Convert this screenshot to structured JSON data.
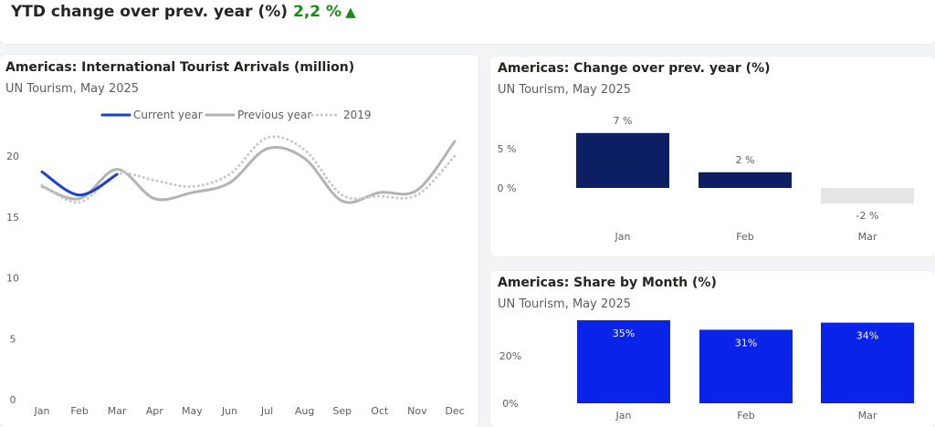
{
  "kpi": {
    "label": "YTD change over prev. year (%)",
    "value": "2,2 %",
    "arrow": "▲",
    "trend_color": "#1a8a1a"
  },
  "chart_data": [
    {
      "type": "line",
      "title": "Americas: International Tourist Arrivals (million)",
      "subtitle": "UN Tourism, May 2025",
      "x": [
        "Jan",
        "Feb",
        "Mar",
        "Apr",
        "May",
        "Jun",
        "Jul",
        "Aug",
        "Sep",
        "Oct",
        "Nov",
        "Dec"
      ],
      "ylim": [
        0,
        22
      ],
      "yticks": [
        0,
        5,
        10,
        15,
        20
      ],
      "legend_position": "top",
      "series": [
        {
          "name": "Current year",
          "color": "#1c3fd6",
          "style": "solid",
          "values": [
            18.7,
            16.8,
            18.5,
            null,
            null,
            null,
            null,
            null,
            null,
            null,
            null,
            null
          ]
        },
        {
          "name": "Previous year",
          "color": "#b3b3b3",
          "style": "solid",
          "values": [
            17.5,
            16.5,
            18.9,
            16.5,
            17.0,
            17.8,
            20.6,
            19.8,
            16.3,
            17.0,
            17.2,
            21.2
          ]
        },
        {
          "name": "2019",
          "color": "#c8c8c8",
          "style": "dotted",
          "values": [
            17.6,
            16.2,
            18.5,
            18.0,
            17.5,
            18.5,
            21.5,
            20.5,
            16.8,
            16.7,
            16.8,
            20.0
          ]
        }
      ]
    },
    {
      "type": "bar",
      "title": "Americas: Change over prev. year (%)",
      "subtitle": "UN Tourism, May 2025",
      "categories": [
        "Jan",
        "Feb",
        "Mar"
      ],
      "values": [
        7,
        2,
        -2
      ],
      "data_labels": [
        "7 %",
        "2 %",
        "-2 %"
      ],
      "yticks": [
        0,
        5
      ],
      "ytick_labels": [
        "0 %",
        "5 %"
      ],
      "ylim": [
        -2,
        7
      ],
      "colors": {
        "positive": "#0c1f63",
        "negative": "#e6e6e6"
      }
    },
    {
      "type": "bar",
      "title": "Americas: Share by Month (%)",
      "subtitle": "UN Tourism, May 2025",
      "categories": [
        "Jan",
        "Feb",
        "Mar"
      ],
      "values": [
        35,
        31,
        34
      ],
      "data_labels": [
        "35%",
        "31%",
        "34%"
      ],
      "yticks": [
        0,
        20
      ],
      "ytick_labels": [
        "0%",
        "20%"
      ],
      "ylim": [
        0,
        35
      ],
      "color": "#0a23e8"
    }
  ]
}
